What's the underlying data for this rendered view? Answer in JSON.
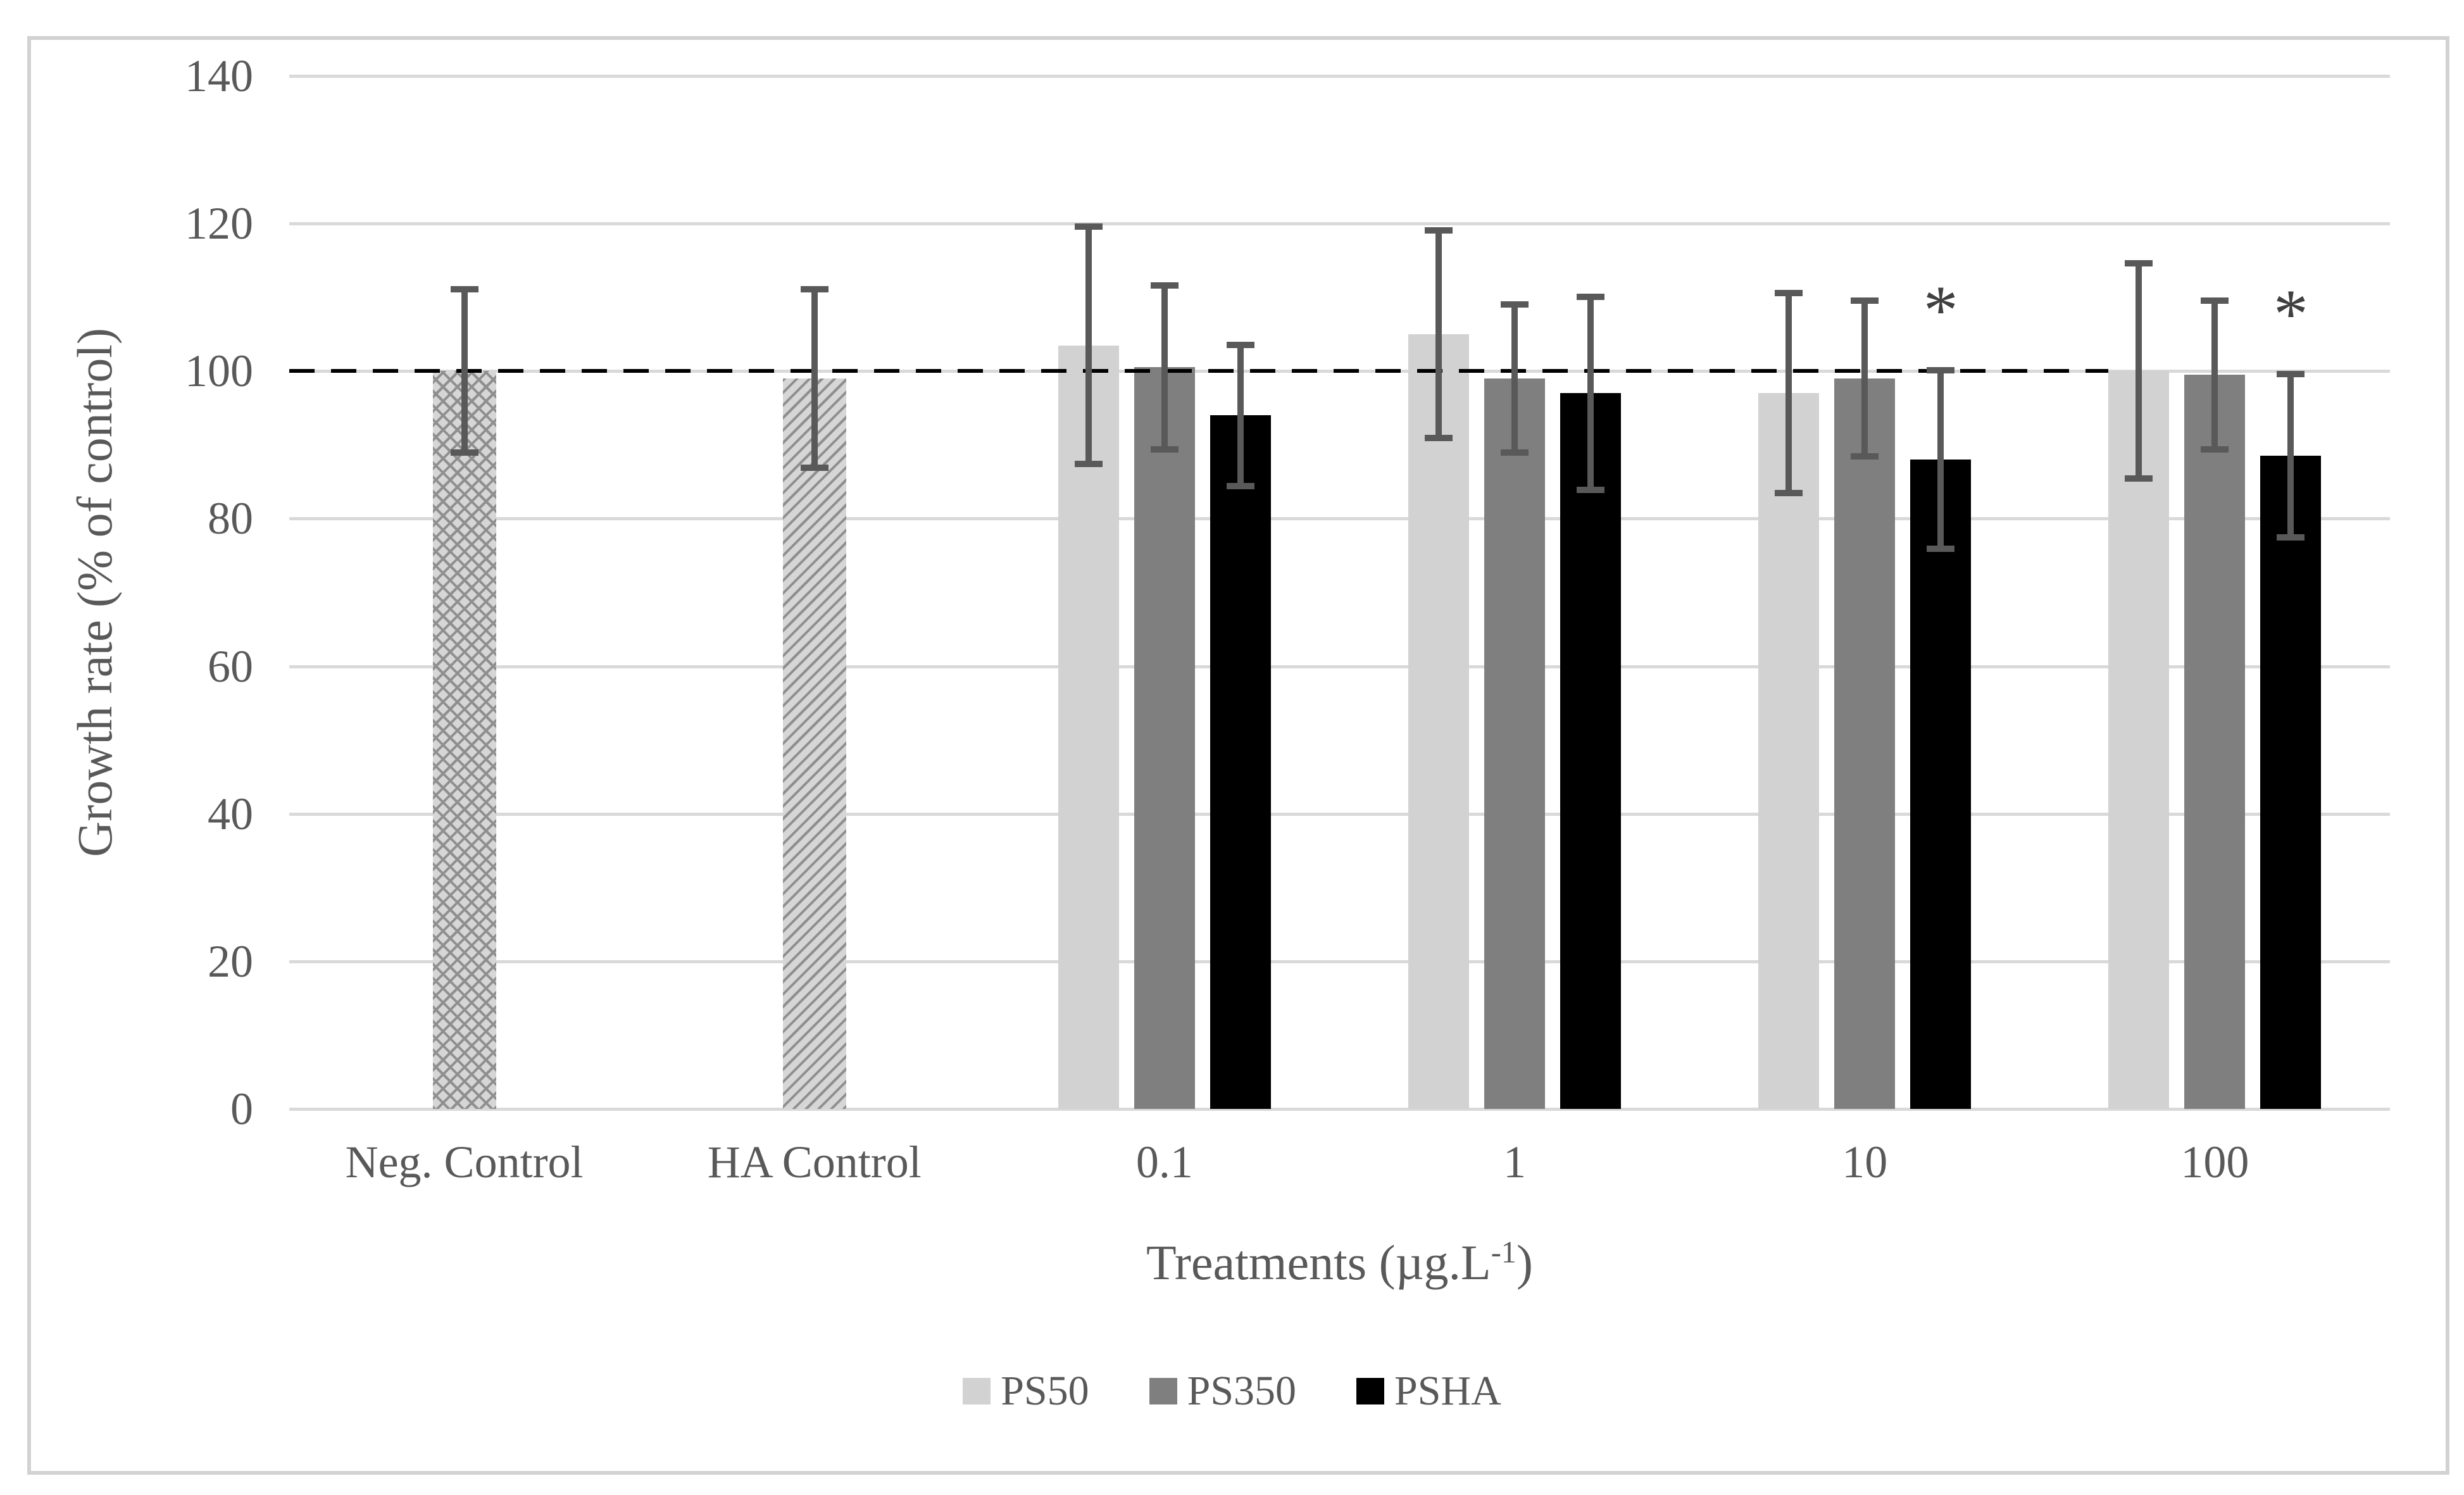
{
  "chart_data": {
    "type": "bar",
    "title": "",
    "ylabel": "Growth rate (% of control)",
    "xlabel": {
      "text": "Treatments (µg.L-1)",
      "prefix": "Treatments (µg.L",
      "superscript": "-1",
      "suffix": ")"
    },
    "ylim": [
      0,
      140
    ],
    "yticks": [
      0,
      20,
      40,
      60,
      80,
      100,
      120,
      140
    ],
    "grid": "horizontal",
    "legend_position": "bottom",
    "reference_line": {
      "value": 100,
      "style": "dashed",
      "color": "#000000"
    },
    "significance_marker": "*",
    "series_meta": [
      {
        "key": "neg",
        "name": "Neg. Control",
        "fill": "pattern-wave",
        "color": "#d6d6d6",
        "pattern_color": "#8f8f8f"
      },
      {
        "key": "ha",
        "name": "HA Control",
        "fill": "pattern-diagonal",
        "color": "#d6d6d6",
        "pattern_color": "#8f8f8f"
      },
      {
        "key": "ps50",
        "name": "PS50",
        "fill": "solid",
        "color": "#d2d2d2"
      },
      {
        "key": "ps350",
        "name": "PS350",
        "fill": "solid",
        "color": "#7f7f7f"
      },
      {
        "key": "psha",
        "name": "PSHA",
        "fill": "solid",
        "color": "#000000"
      }
    ],
    "groups": [
      {
        "label": "Neg. Control",
        "bars": [
          {
            "series": "neg",
            "value": 100,
            "error": 11.5,
            "significant": false
          }
        ]
      },
      {
        "label": "HA Control",
        "bars": [
          {
            "series": "ha",
            "value": 99,
            "error": 12.5,
            "significant": false
          }
        ]
      },
      {
        "label": "0.1",
        "bars": [
          {
            "series": "ps50",
            "value": 103.5,
            "error": 16.5,
            "significant": false
          },
          {
            "series": "ps350",
            "value": 100.5,
            "error": 11.5,
            "significant": false
          },
          {
            "series": "psha",
            "value": 94,
            "error": 10,
            "significant": false
          }
        ]
      },
      {
        "label": "1",
        "bars": [
          {
            "series": "ps50",
            "value": 105,
            "error": 14.5,
            "significant": false
          },
          {
            "series": "ps350",
            "value": 99,
            "error": 10.5,
            "significant": false
          },
          {
            "series": "psha",
            "value": 97,
            "error": 13.5,
            "significant": false
          }
        ]
      },
      {
        "label": "10",
        "bars": [
          {
            "series": "ps50",
            "value": 97,
            "error": 14,
            "significant": false
          },
          {
            "series": "ps350",
            "value": 99,
            "error": 11,
            "significant": false
          },
          {
            "series": "psha",
            "value": 88,
            "error": 12.5,
            "significant": true
          }
        ]
      },
      {
        "label": "100",
        "bars": [
          {
            "series": "ps50",
            "value": 100,
            "error": 15,
            "significant": false
          },
          {
            "series": "ps350",
            "value": 99.5,
            "error": 10.5,
            "significant": false
          },
          {
            "series": "psha",
            "value": 88.5,
            "error": 11.5,
            "significant": true
          }
        ]
      }
    ],
    "legend": [
      {
        "label": "PS50",
        "series": "ps50"
      },
      {
        "label": "PS350",
        "series": "ps350"
      },
      {
        "label": "PSHA",
        "series": "psha"
      }
    ],
    "colors": {
      "error_bar": "#595959",
      "text": "#595959",
      "gridline": "#d9d9d9",
      "dashed_line": "#000000",
      "frame": "#d2d2d2"
    }
  }
}
